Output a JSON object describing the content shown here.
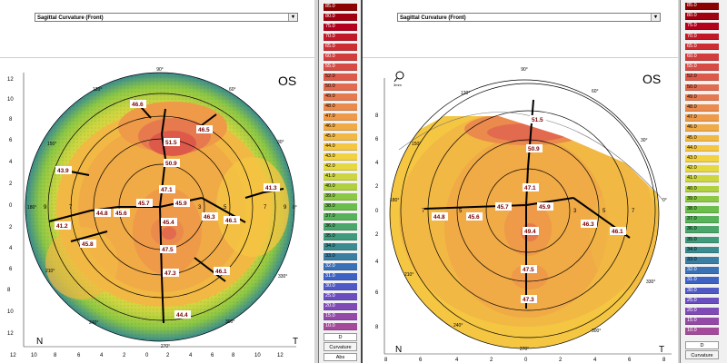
{
  "left": {
    "dropdown_value": "Sagittal Curvature (Front)",
    "eye": "OS",
    "label_n": "N",
    "label_t": "T",
    "angle_90": "90°",
    "angle_270": "270°",
    "angle_120": "120°",
    "angle_60": "60°",
    "angle_150": "150°",
    "angle_30": "30°",
    "angle_180": "180°",
    "angle_0": "0°",
    "angle_210": "210°",
    "angle_330": "330°",
    "angle_240": "240°",
    "angle_300": "300°",
    "ring_9": "9",
    "ring_7_l": "7",
    "ring_7_r": "7",
    "ring_9_r": "9",
    "ring_3": "3",
    "ring_5": "5",
    "readings": {
      "r1": "46.6",
      "r2": "46.5",
      "r3": "51.5",
      "r4": "50.9",
      "r5": "43.9",
      "r6": "41.3",
      "r7": "47.1",
      "r8": "45.7",
      "r9": "45.9",
      "r10": "44.8",
      "r11": "45.6",
      "r12": "46.3",
      "r13": "46.1",
      "r14": "45.4",
      "r15": "41.2",
      "r16": "45.8",
      "r17": "47.5",
      "r18": "47.3",
      "r19": "46.1",
      "r20": "44.4"
    },
    "yaxis": [
      "12",
      "10",
      "8",
      "6",
      "4",
      "2",
      "0",
      "2",
      "4",
      "6",
      "8",
      "10",
      "12"
    ],
    "xaxis": [
      "12",
      "10",
      "8",
      "6",
      "4",
      "2",
      "0",
      "2",
      "4",
      "6",
      "8",
      "10",
      "12"
    ]
  },
  "right": {
    "dropdown_value": "Sagittal Curvature (Front)",
    "eye": "OS",
    "zoom": "3mm",
    "label_n": "N",
    "label_t": "T",
    "angle_90": "90°",
    "angle_270": "270°",
    "angle_120": "120°",
    "angle_60": "60°",
    "angle_150": "150°",
    "angle_30": "30°",
    "angle_180": "180°",
    "angle_0": "0°",
    "angle_210": "210°",
    "angle_330": "330°",
    "angle_240": "240°",
    "angle_300": "300°",
    "ring_7_l": "7",
    "ring_5_l": "5",
    "ring_3": "3",
    "ring_5": "5",
    "ring_7": "7",
    "readings": {
      "r1": "51.5",
      "r2": "50.9",
      "r3": "47.1",
      "r4": "45.7",
      "r5": "45.9",
      "r6": "44.8",
      "r7": "45.6",
      "r8": "49.4",
      "r9": "46.3",
      "r10": "46.1",
      "r11": "47.5",
      "r12": "47.3"
    },
    "yaxis": [
      "8",
      "6",
      "4",
      "2",
      "0",
      "2",
      "4",
      "6",
      "8"
    ],
    "xaxis": [
      "8",
      "6",
      "4",
      "2",
      "0",
      "2",
      "4",
      "6",
      "8"
    ]
  },
  "scale": {
    "steps": [
      "85.0",
      "80.0",
      "75.0",
      "70.0",
      "65.0",
      "60.0",
      "55.0",
      "52.0",
      "50.0",
      "49.0",
      "48.0",
      "47.0",
      "46.0",
      "45.0",
      "44.0",
      "43.0",
      "42.0",
      "41.0",
      "40.0",
      "39.0",
      "38.0",
      "37.0",
      "36.0",
      "35.0",
      "34.0",
      "33.0",
      "32.0",
      "31.0",
      "30.0",
      "25.0",
      "20.0",
      "15.0",
      "10.0"
    ],
    "colors": [
      "#8b0000",
      "#a00010",
      "#b4001c",
      "#c21828",
      "#cc2e34",
      "#d33c3c",
      "#d84a44",
      "#dd5a4a",
      "#e26a4e",
      "#e67a4e",
      "#ea8a4c",
      "#ee9a48",
      "#f0aa46",
      "#f2b844",
      "#f4c642",
      "#f2d240",
      "#e6d840",
      "#cdd640",
      "#b0d040",
      "#8cc844",
      "#6cbe4c",
      "#58b25a",
      "#4aa66a",
      "#409a7c",
      "#3a8c90",
      "#3a7ea4",
      "#3a70b6",
      "#3e62c4",
      "#5058c6",
      "#6a4ec0",
      "#804ab6",
      "#9448a8",
      "#a44a9a"
    ],
    "unit_left": "D",
    "label_left": "Curvature",
    "footer_left": "Abs",
    "unit_right": "D",
    "label_right": "Curvature"
  }
}
